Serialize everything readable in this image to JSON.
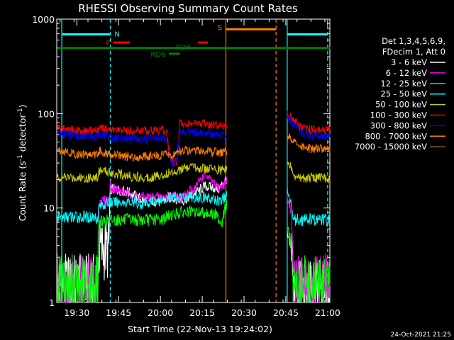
{
  "chart_data": {
    "type": "line",
    "title": "RHESSI Observing Summary Count Rates",
    "xlabel": "Start Time (22-Nov-13 19:24:02)",
    "ylabel_prefix": "Count Rate (s",
    "ylabel_sup1": "-1",
    "ylabel_mid": " detector",
    "ylabel_sup2": "-1",
    "ylabel_suffix": ")",
    "yscale": "log",
    "ylim": [
      1,
      1000
    ],
    "xlim_minutes": [
      0,
      96
    ],
    "x_ticks": [
      {
        "label": "19:30",
        "min": 6
      },
      {
        "label": "19:45",
        "min": 21
      },
      {
        "label": "20:00",
        "min": 36
      },
      {
        "label": "20:15",
        "min": 51
      },
      {
        "label": "20:30",
        "min": 66
      },
      {
        "label": "20:45",
        "min": 81
      },
      {
        "label": "21:00",
        "min": 96
      }
    ],
    "y_ticks": [
      {
        "label": "1",
        "v": 1
      },
      {
        "label": "10",
        "v": 10
      },
      {
        "label": "100",
        "v": 100
      },
      {
        "label": "1000",
        "v": 1000
      }
    ],
    "legend_header": [
      "Det 1,3,4,5,6,9,",
      "FDecim 1, Att 0"
    ],
    "legend_position": "right",
    "series": [
      {
        "name": "3 - 6 keV",
        "color": "#ffffff",
        "values": [
          [
            -1,
            1.5
          ],
          [
            13.5,
            1.5
          ],
          [
            14,
            3.5
          ],
          [
            17.5,
            3.7
          ],
          [
            18,
            16
          ],
          [
            24,
            15
          ],
          [
            30,
            12
          ],
          [
            36,
            12
          ],
          [
            40,
            13
          ],
          [
            44,
            12
          ],
          [
            48,
            14
          ],
          [
            52,
            17
          ],
          [
            57,
            16
          ],
          [
            59,
            19
          ],
          [
            60,
            21
          ],
          [
            67,
            null
          ],
          [
            81.5,
            5
          ],
          [
            83,
            3.5
          ],
          [
            84,
            1.3
          ],
          [
            97,
            1.3
          ]
        ]
      },
      {
        "name": "6 - 12 keV",
        "color": "#ff00ff",
        "values": [
          [
            -1,
            1.5
          ],
          [
            13.5,
            1.5
          ],
          [
            14,
            12
          ],
          [
            17.5,
            12
          ],
          [
            18,
            17
          ],
          [
            24,
            14
          ],
          [
            30,
            13
          ],
          [
            36,
            13
          ],
          [
            40,
            13.5
          ],
          [
            44,
            13
          ],
          [
            48,
            16
          ],
          [
            52,
            23
          ],
          [
            55,
            18
          ],
          [
            57,
            16
          ],
          [
            59,
            18
          ],
          [
            60,
            20
          ],
          [
            67,
            null
          ],
          [
            81.5,
            13
          ],
          [
            83,
            9
          ],
          [
            84,
            1.5
          ],
          [
            97,
            1.5
          ]
        ]
      },
      {
        "name": "12 - 25 keV",
        "color": "#00ff00",
        "values": [
          [
            -1,
            1.5
          ],
          [
            13.5,
            1.5
          ],
          [
            14,
            7
          ],
          [
            18,
            7.5
          ],
          [
            24,
            7.5
          ],
          [
            30,
            7.5
          ],
          [
            36,
            7.5
          ],
          [
            40,
            8.5
          ],
          [
            44,
            9
          ],
          [
            48,
            9
          ],
          [
            52,
            9
          ],
          [
            56,
            8.5
          ],
          [
            58,
            7
          ],
          [
            60,
            12
          ],
          [
            67,
            null
          ],
          [
            81.5,
            6
          ],
          [
            83,
            4
          ],
          [
            84,
            1.5
          ],
          [
            97,
            1.5
          ]
        ]
      },
      {
        "name": "25 - 50 keV",
        "color": "#00ffff",
        "values": [
          [
            -1,
            8
          ],
          [
            13.5,
            8
          ],
          [
            14,
            10.5
          ],
          [
            18,
            11.5
          ],
          [
            24,
            11.5
          ],
          [
            30,
            11
          ],
          [
            36,
            12
          ],
          [
            40,
            13
          ],
          [
            44,
            13
          ],
          [
            48,
            13
          ],
          [
            52,
            13
          ],
          [
            56,
            12
          ],
          [
            58,
            12
          ],
          [
            60,
            14
          ],
          [
            67,
            null
          ],
          [
            81.5,
            15
          ],
          [
            83,
            11
          ],
          [
            84,
            7.5
          ],
          [
            90,
            7.5
          ],
          [
            97,
            7.5
          ]
        ]
      },
      {
        "name": "50 - 100 keV",
        "color": "#cccc00",
        "values": [
          [
            -1,
            21
          ],
          [
            13.5,
            21
          ],
          [
            14,
            25
          ],
          [
            18,
            24
          ],
          [
            24,
            22
          ],
          [
            30,
            21
          ],
          [
            36,
            22
          ],
          [
            40,
            24
          ],
          [
            44,
            26
          ],
          [
            48,
            27
          ],
          [
            52,
            26
          ],
          [
            56,
            26
          ],
          [
            58,
            25
          ],
          [
            60,
            27
          ],
          [
            67,
            null
          ],
          [
            81.5,
            31
          ],
          [
            83,
            26
          ],
          [
            84,
            21
          ],
          [
            90,
            21
          ],
          [
            97,
            21
          ]
        ]
      },
      {
        "name": "100 - 300 keV",
        "color": "#ff0000",
        "values": [
          [
            -1,
            72
          ],
          [
            3,
            68
          ],
          [
            6,
            66
          ],
          [
            13.5,
            66
          ],
          [
            14,
            70
          ],
          [
            18,
            67
          ],
          [
            24,
            66
          ],
          [
            30,
            66
          ],
          [
            36,
            67
          ],
          [
            38,
            66
          ],
          [
            40,
            30
          ],
          [
            42,
            31
          ],
          [
            43,
            79
          ],
          [
            48,
            78
          ],
          [
            52,
            77
          ],
          [
            56,
            76
          ],
          [
            58,
            75
          ],
          [
            60,
            74
          ],
          [
            67,
            null
          ],
          [
            81.5,
            98
          ],
          [
            84,
            85
          ],
          [
            86,
            72
          ],
          [
            90,
            67
          ],
          [
            97,
            67
          ]
        ]
      },
      {
        "name": "300 - 800 keV",
        "color": "#0000ff",
        "values": [
          [
            -1,
            63
          ],
          [
            3,
            59
          ],
          [
            6,
            57
          ],
          [
            13.5,
            57
          ],
          [
            14,
            60
          ],
          [
            18,
            56
          ],
          [
            24,
            55
          ],
          [
            30,
            54
          ],
          [
            36,
            55
          ],
          [
            38,
            54
          ],
          [
            40,
            30
          ],
          [
            42,
            32
          ],
          [
            43,
            64
          ],
          [
            48,
            63
          ],
          [
            52,
            62
          ],
          [
            56,
            60
          ],
          [
            58,
            59
          ],
          [
            60,
            58
          ],
          [
            67,
            null
          ],
          [
            81.5,
            88
          ],
          [
            84,
            76
          ],
          [
            86,
            62
          ],
          [
            90,
            58
          ],
          [
            97,
            58
          ]
        ]
      },
      {
        "name": "800 - 7000 keV",
        "color": "#ff8000",
        "values": [
          [
            -1,
            42
          ],
          [
            3,
            39
          ],
          [
            6,
            37
          ],
          [
            13.5,
            37
          ],
          [
            14,
            40
          ],
          [
            18,
            37
          ],
          [
            24,
            35
          ],
          [
            30,
            35
          ],
          [
            36,
            36
          ],
          [
            38,
            37
          ],
          [
            40,
            36
          ],
          [
            42,
            38
          ],
          [
            43,
            40
          ],
          [
            48,
            41
          ],
          [
            52,
            40
          ],
          [
            56,
            39
          ],
          [
            58,
            38
          ],
          [
            60,
            39
          ],
          [
            67,
            null
          ],
          [
            81.5,
            58
          ],
          [
            84,
            52
          ],
          [
            86,
            44
          ],
          [
            90,
            42
          ],
          [
            97,
            42
          ]
        ]
      },
      {
        "name": "7000 - 15000 keV",
        "color": "#a06010",
        "values": []
      }
    ],
    "vertical_lines": [
      {
        "min": 0.6,
        "color": "#00ffff",
        "dashed": false
      },
      {
        "min": 18,
        "color": "#00ffff",
        "dashed": true
      },
      {
        "min": 59.5,
        "color": "#ff8000",
        "dashed": false
      },
      {
        "min": 77.5,
        "color": "#ff8000",
        "dashed": true
      },
      {
        "min": 81.5,
        "color": "#00ffff",
        "dashed": false
      },
      {
        "min": 96,
        "color": "#00ffff",
        "dashed": true
      }
    ],
    "flag_bars": [
      {
        "label": "N",
        "color": "#00ffff",
        "x0": 0.6,
        "x1": 18,
        "y": 690,
        "label_min": 19.5,
        "label_y": 700
      },
      {
        "label": "",
        "color": "#00ffff",
        "x0": 81.5,
        "x1": 96,
        "y": 690
      },
      {
        "label": "F",
        "color": "#ff0000",
        "x0": 19,
        "x1": 25,
        "y": 565,
        "label_min": 16.5,
        "label_y": 570
      },
      {
        "label": "RD6",
        "color": "#008000",
        "x0": 39,
        "x1": 43,
        "y": 430,
        "label_min": 32.5,
        "label_y": 430
      },
      {
        "label": "RD8",
        "color": "#008000",
        "x0": -1,
        "x1": 97,
        "y": 495,
        "label_min": 41.5,
        "label_y": 510
      },
      {
        "label": "",
        "color": "#ff0000",
        "x0": 49.5,
        "x1": 53,
        "y": 565
      },
      {
        "label": "S",
        "color": "#ff8000",
        "x0": 59.5,
        "x1": 77.5,
        "y": 780,
        "label_min": 56.5,
        "label_y": 820
      }
    ],
    "footer_date": "24-Oct-2021 21:25"
  }
}
